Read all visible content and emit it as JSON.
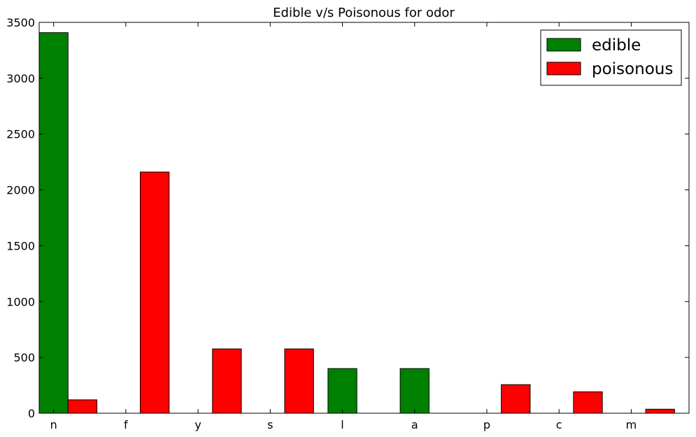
{
  "chart_data": {
    "type": "bar",
    "title": "Edible v/s Poisonous for odor",
    "xlabel": "",
    "ylabel": "",
    "categories": [
      "n",
      "f",
      "y",
      "s",
      "l",
      "a",
      "p",
      "c",
      "m"
    ],
    "series": [
      {
        "name": "edible",
        "color": "#008000",
        "values": [
          3408,
          0,
          0,
          0,
          400,
          400,
          0,
          0,
          0
        ]
      },
      {
        "name": "poisonous",
        "color": "#ff0000",
        "values": [
          120,
          2160,
          576,
          576,
          0,
          0,
          256,
          192,
          36
        ]
      }
    ],
    "ylim": [
      0,
      3500
    ],
    "yticks": [
      0,
      500,
      1000,
      1500,
      2000,
      2500,
      3000,
      3500
    ],
    "grid": false,
    "legend_position": "top-right"
  }
}
